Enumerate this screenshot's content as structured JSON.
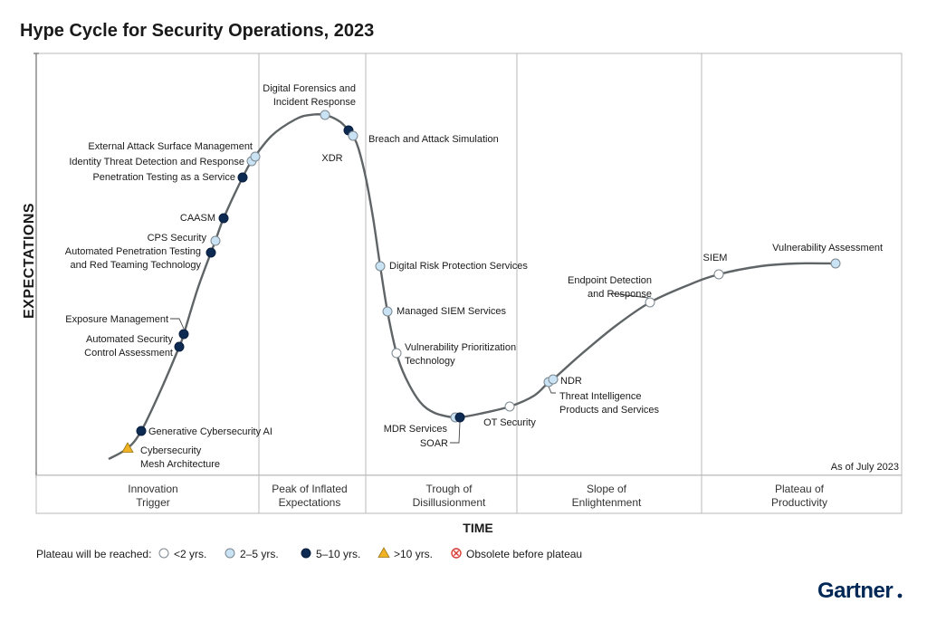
{
  "title": "Hype Cycle for Security Operations, 2023",
  "ylabel": "EXPECTATIONS",
  "xlabel": "TIME",
  "as_of": "As of July 2023",
  "brand": "Gartner",
  "legend_title": "Plateau will be reached:",
  "phases": [
    [
      "Innovation",
      "Trigger"
    ],
    [
      "Peak of Inflated",
      "Expectations"
    ],
    [
      "Trough of",
      "Disillusionment"
    ],
    [
      "Slope of",
      "Enlightenment"
    ],
    [
      "Plateau of",
      "Productivity"
    ]
  ],
  "legend": [
    {
      "label": "<2 yrs.",
      "marker": "white-circle"
    },
    {
      "label": "2–5 yrs.",
      "marker": "light-blue-circle"
    },
    {
      "label": "5–10 yrs.",
      "marker": "navy-circle"
    },
    {
      "label": ">10 yrs.",
      "marker": "yellow-triangle"
    },
    {
      "label": "Obsolete before plateau",
      "marker": "red-x-circle"
    }
  ],
  "colors": {
    "lt2": "#ffffff",
    "2to5": "#c9e3f5",
    "5to10": "#0d2b52",
    "gt10": "#f0b323",
    "obsolete": "#d83a34",
    "curve": "#5f6466",
    "brand": "#002856"
  },
  "chart_data": {
    "type": "scatter",
    "title": "Hype Cycle for Security Operations, 2023",
    "xlabel": "TIME",
    "ylabel": "EXPECTATIONS",
    "grid": false,
    "legend_position": "bottom",
    "points": [
      {
        "name": "Cybersecurity Mesh Architecture",
        "label_lines": [
          "Cybersecurity",
          "Mesh Architecture"
        ],
        "category": "gt10"
      },
      {
        "name": "Generative Cybersecurity AI",
        "label_lines": [
          "Generative Cybersecurity AI"
        ],
        "category": "5to10"
      },
      {
        "name": "Automated Security Control Assessment",
        "label_lines": [
          "Automated Security",
          "Control Assessment"
        ],
        "category": "5to10"
      },
      {
        "name": "Exposure Management",
        "label_lines": [
          "Exposure Management"
        ],
        "category": "5to10"
      },
      {
        "name": "Automated Penetration Testing and Red Teaming Technology",
        "label_lines": [
          "Automated Penetration Testing",
          "and Red Teaming Technology"
        ],
        "category": "5to10"
      },
      {
        "name": "CPS Security",
        "label_lines": [
          "CPS Security"
        ],
        "category": "2to5"
      },
      {
        "name": "CAASM",
        "label_lines": [
          "CAASM"
        ],
        "category": "5to10"
      },
      {
        "name": "Penetration Testing as a Service",
        "label_lines": [
          "Penetration Testing as a Service"
        ],
        "category": "5to10"
      },
      {
        "name": "Identity Threat Detection and Response",
        "label_lines": [
          "Identity Threat Detection and Response"
        ],
        "category": "2to5"
      },
      {
        "name": "External Attack Surface Management",
        "label_lines": [
          "External Attack Surface Management"
        ],
        "category": "2to5"
      },
      {
        "name": "Digital Forensics and Incident Response",
        "label_lines": [
          "Digital Forensics and",
          "Incident Response"
        ],
        "category": "2to5"
      },
      {
        "name": "XDR",
        "label_lines": [
          "XDR"
        ],
        "category": "5to10"
      },
      {
        "name": "Breach and Attack Simulation",
        "label_lines": [
          "Breach and Attack Simulation"
        ],
        "category": "2to5"
      },
      {
        "name": "Digital Risk Protection Services",
        "label_lines": [
          "Digital Risk Protection Services"
        ],
        "category": "2to5"
      },
      {
        "name": "Managed SIEM Services",
        "label_lines": [
          "Managed SIEM Services"
        ],
        "category": "2to5"
      },
      {
        "name": "Vulnerability Prioritization Technology",
        "label_lines": [
          "Vulnerability Prioritization",
          "Technology"
        ],
        "category": "lt2"
      },
      {
        "name": "MDR Services",
        "label_lines": [
          "MDR Services"
        ],
        "category": "2to5"
      },
      {
        "name": "SOAR",
        "label_lines": [
          "SOAR"
        ],
        "category": "5to10"
      },
      {
        "name": "OT Security",
        "label_lines": [
          "OT Security"
        ],
        "category": "lt2"
      },
      {
        "name": "Threat Intelligence Products and Services",
        "label_lines": [
          "Threat Intelligence",
          "Products and Services"
        ],
        "category": "2to5"
      },
      {
        "name": "NDR",
        "label_lines": [
          "NDR"
        ],
        "category": "2to5"
      },
      {
        "name": "Endpoint Detection and Response",
        "label_lines": [
          "Endpoint Detection",
          "and Response"
        ],
        "category": "lt2"
      },
      {
        "name": "SIEM",
        "label_lines": [
          "SIEM"
        ],
        "category": "lt2"
      },
      {
        "name": "Vulnerability Assessment",
        "label_lines": [
          "Vulnerability Assessment"
        ],
        "category": "2to5"
      }
    ]
  }
}
